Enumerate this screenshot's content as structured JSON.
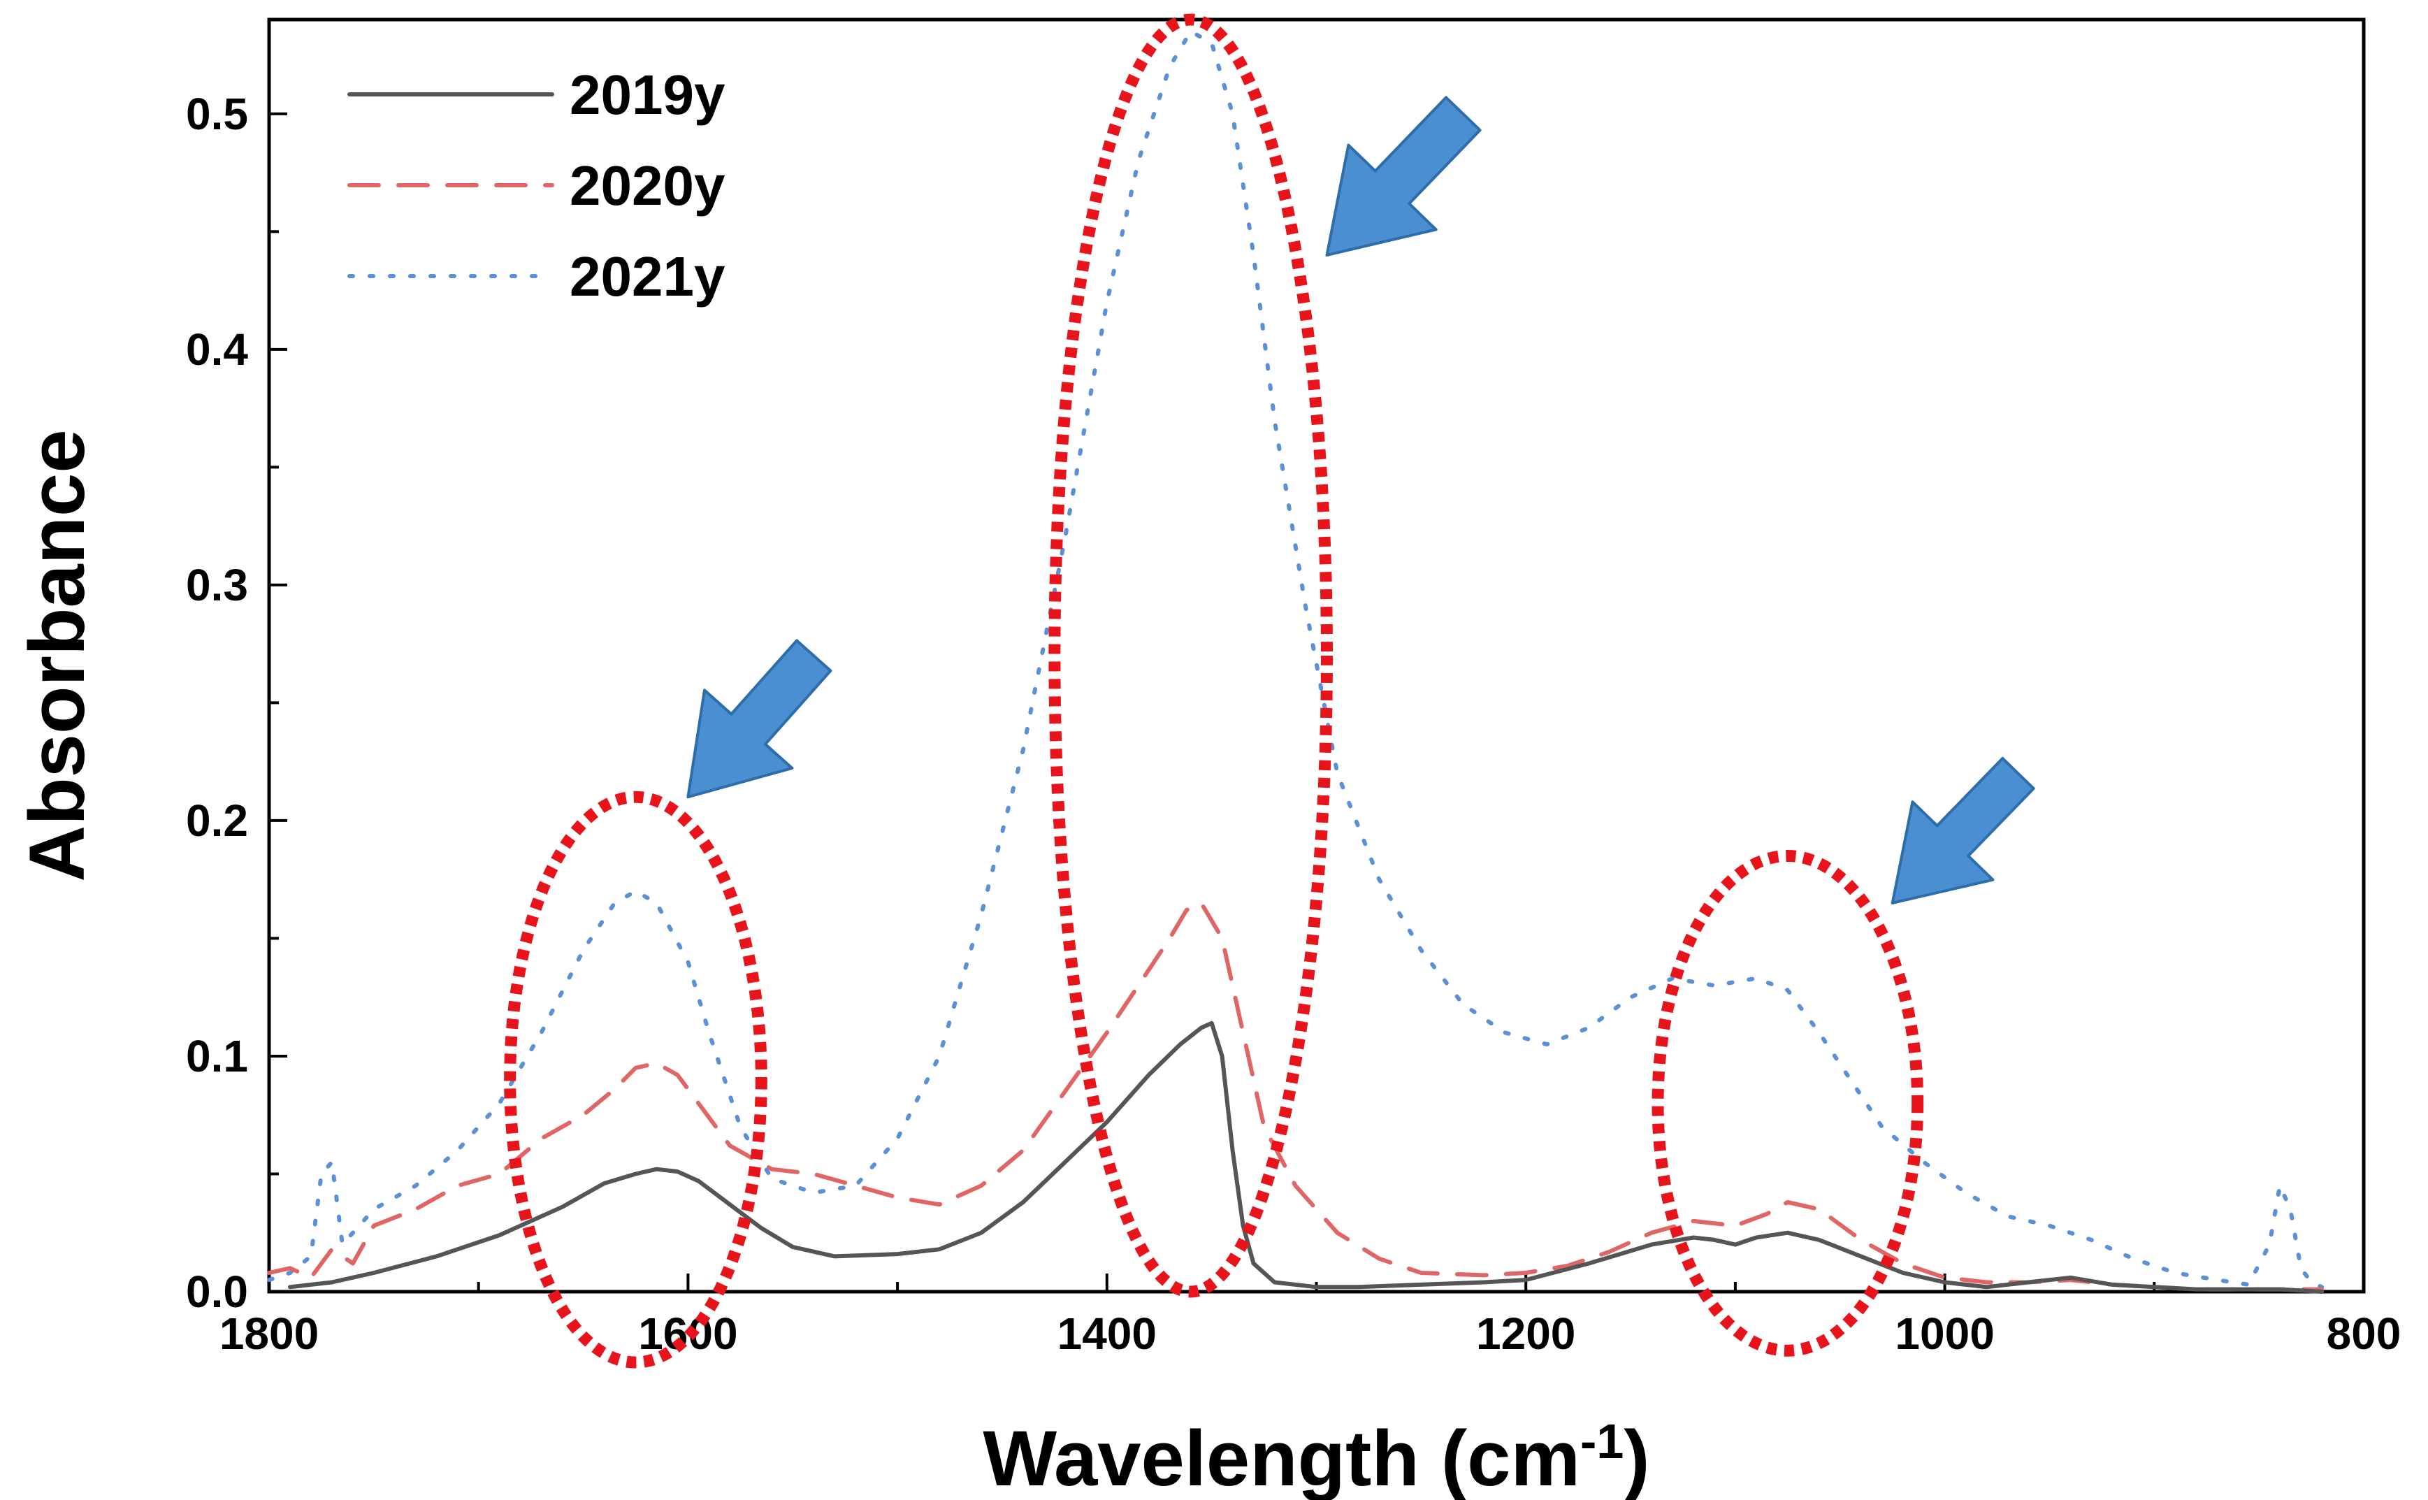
{
  "chart_data": {
    "type": "line",
    "xlabel": "Wavelength (cm",
    "xlabel_sup": "-1",
    "xlabel_close": ")",
    "ylabel": "Absorbance",
    "xlim": [
      1800,
      800
    ],
    "ylim": [
      0,
      0.54
    ],
    "x_ticks": [
      1800,
      1600,
      1400,
      1200,
      1000,
      800
    ],
    "x_tick_labels": [
      "1800",
      "1600",
      "1400",
      "1200",
      "1000",
      "800"
    ],
    "y_ticks": [
      0.0,
      0.1,
      0.2,
      0.3,
      0.4,
      0.5
    ],
    "y_tick_labels": [
      "0.0",
      "0.1",
      "0.2",
      "0.3",
      "0.4",
      "0.5"
    ],
    "legend_position": "top-left",
    "series": [
      {
        "name": "2019y",
        "style": "solid",
        "color": "#555555",
        "x": [
          1790,
          1770,
          1750,
          1720,
          1690,
          1660,
          1640,
          1625,
          1615,
          1605,
          1595,
          1580,
          1565,
          1550,
          1530,
          1500,
          1480,
          1460,
          1440,
          1420,
          1400,
          1380,
          1365,
          1355,
          1350,
          1345,
          1340,
          1335,
          1330,
          1320,
          1300,
          1280,
          1250,
          1220,
          1200,
          1170,
          1140,
          1120,
          1110,
          1100,
          1090,
          1075,
          1060,
          1040,
          1020,
          1000,
          980,
          960,
          940,
          920,
          900,
          880,
          860,
          840,
          820
        ],
        "y": [
          0.002,
          0.004,
          0.008,
          0.015,
          0.024,
          0.036,
          0.046,
          0.05,
          0.052,
          0.051,
          0.047,
          0.037,
          0.027,
          0.019,
          0.015,
          0.016,
          0.018,
          0.025,
          0.038,
          0.055,
          0.072,
          0.092,
          0.105,
          0.112,
          0.114,
          0.1,
          0.06,
          0.028,
          0.012,
          0.004,
          0.002,
          0.002,
          0.003,
          0.004,
          0.005,
          0.012,
          0.02,
          0.023,
          0.022,
          0.02,
          0.023,
          0.025,
          0.022,
          0.015,
          0.008,
          0.004,
          0.002,
          0.004,
          0.006,
          0.003,
          0.002,
          0.001,
          0.001,
          0.001,
          0.0
        ]
      },
      {
        "name": "2020y",
        "style": "dashed",
        "color": "#e06666",
        "x": [
          1800,
          1790,
          1780,
          1770,
          1760,
          1750,
          1730,
          1710,
          1690,
          1670,
          1650,
          1635,
          1625,
          1615,
          1605,
          1595,
          1580,
          1560,
          1540,
          1520,
          1500,
          1480,
          1460,
          1440,
          1420,
          1400,
          1385,
          1370,
          1362,
          1355,
          1345,
          1335,
          1325,
          1310,
          1290,
          1270,
          1250,
          1220,
          1200,
          1180,
          1160,
          1140,
          1120,
          1100,
          1085,
          1075,
          1060,
          1040,
          1020,
          1000,
          980,
          960,
          940,
          920,
          900,
          880,
          860,
          840,
          820
        ],
        "y": [
          0.008,
          0.01,
          0.006,
          0.018,
          0.012,
          0.028,
          0.035,
          0.045,
          0.05,
          0.065,
          0.075,
          0.086,
          0.095,
          0.097,
          0.092,
          0.08,
          0.062,
          0.052,
          0.05,
          0.045,
          0.04,
          0.037,
          0.045,
          0.06,
          0.085,
          0.11,
          0.13,
          0.15,
          0.162,
          0.165,
          0.15,
          0.11,
          0.07,
          0.045,
          0.025,
          0.014,
          0.008,
          0.007,
          0.008,
          0.011,
          0.017,
          0.025,
          0.03,
          0.028,
          0.033,
          0.038,
          0.035,
          0.022,
          0.012,
          0.006,
          0.004,
          0.004,
          0.005,
          0.003,
          0.002,
          0.001,
          0.001,
          0.001,
          0.001
        ]
      },
      {
        "name": "2021y",
        "style": "dotted",
        "color": "#5b8fd6",
        "x": [
          1800,
          1790,
          1780,
          1775,
          1770,
          1765,
          1760,
          1750,
          1730,
          1710,
          1690,
          1670,
          1650,
          1635,
          1625,
          1615,
          1600,
          1590,
          1575,
          1560,
          1540,
          1520,
          1500,
          1480,
          1460,
          1440,
          1420,
          1400,
          1385,
          1370,
          1360,
          1350,
          1340,
          1330,
          1320,
          1305,
          1290,
          1270,
          1250,
          1230,
          1210,
          1190,
          1170,
          1150,
          1130,
          1110,
          1090,
          1075,
          1060,
          1045,
          1030,
          1010,
          990,
          970,
          950,
          930,
          910,
          890,
          870,
          855,
          845,
          840,
          835,
          830,
          825,
          820
        ],
        "y": [
          0.005,
          0.008,
          0.015,
          0.05,
          0.055,
          0.02,
          0.025,
          0.035,
          0.045,
          0.06,
          0.08,
          0.11,
          0.145,
          0.165,
          0.17,
          0.165,
          0.14,
          0.11,
          0.07,
          0.048,
          0.042,
          0.045,
          0.065,
          0.1,
          0.16,
          0.23,
          0.32,
          0.42,
          0.48,
          0.52,
          0.535,
          0.53,
          0.5,
          0.44,
          0.37,
          0.29,
          0.22,
          0.175,
          0.145,
          0.122,
          0.11,
          0.105,
          0.112,
          0.125,
          0.133,
          0.13,
          0.133,
          0.128,
          0.11,
          0.09,
          0.07,
          0.055,
          0.042,
          0.032,
          0.028,
          0.022,
          0.014,
          0.008,
          0.005,
          0.003,
          0.02,
          0.045,
          0.035,
          0.01,
          0.004,
          0.002
        ]
      }
    ],
    "annotations": {
      "ellipse_color": "#e8141b",
      "arrow_color": "#4a8fd1",
      "arrow_outline": "#2f6da8",
      "highlighted_regions": [
        {
          "x_center": 1625,
          "y_center": 0.09,
          "x_halfwidth": 60,
          "y_halfwidth": 0.12
        },
        {
          "x_center": 1360,
          "y_center": 0.27,
          "x_halfwidth": 65,
          "y_halfwidth": 0.27
        },
        {
          "x_center": 1075,
          "y_center": 0.08,
          "x_halfwidth": 62,
          "y_halfwidth": 0.105
        }
      ],
      "arrows": [
        {
          "tip_x": 1600,
          "tip_y": 0.21,
          "tail_x": 1540,
          "tail_y": 0.27
        },
        {
          "tip_x": 1295,
          "tip_y": 0.44,
          "tail_x": 1230,
          "tail_y": 0.5
        },
        {
          "tip_x": 1025,
          "tip_y": 0.165,
          "tail_x": 965,
          "tail_y": 0.22
        }
      ]
    }
  }
}
